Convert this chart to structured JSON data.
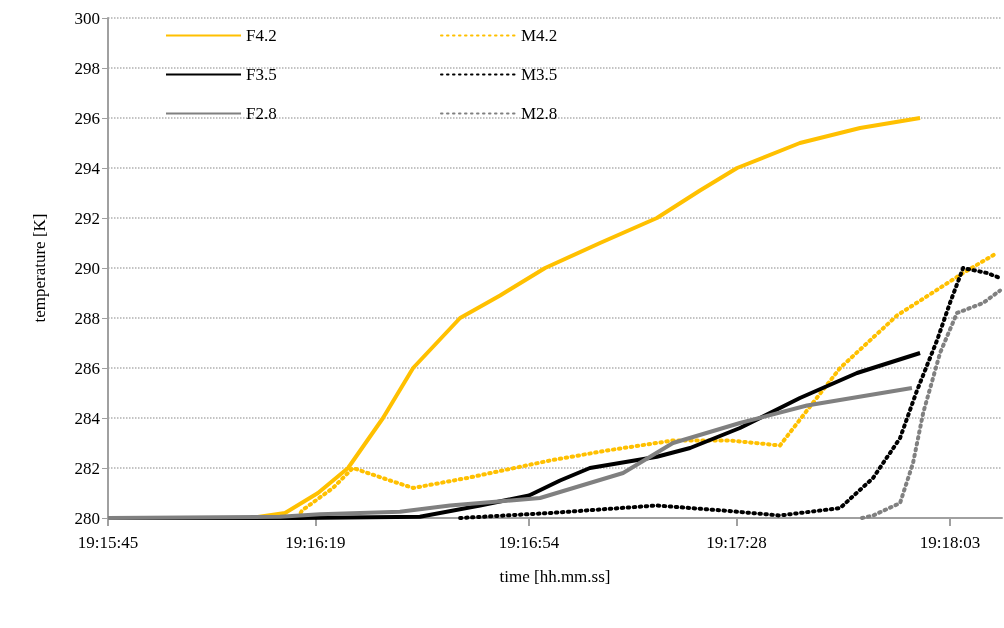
{
  "chart_data": {
    "type": "line",
    "xlabel": "time [hh.mm.ss]",
    "ylabel": "temperature [K]",
    "xlim": [
      19.2625,
      19.3032
    ],
    "xticks": [
      {
        "value": 19.2625,
        "label": "19:15:45"
      },
      {
        "value": 19.27194,
        "label": "19:16:19"
      },
      {
        "value": 19.28167,
        "label": "19:16:54"
      },
      {
        "value": 19.29111,
        "label": "19:17:28"
      },
      {
        "value": 19.30083,
        "label": "19:18:03"
      }
    ],
    "ylim": [
      280,
      300
    ],
    "yticks": [
      280,
      282,
      284,
      286,
      288,
      290,
      292,
      294,
      296,
      298,
      300
    ],
    "grid": "y",
    "legend": "top left",
    "marker": "none",
    "series": [
      {
        "name": "F4.2",
        "color": "#ffc000",
        "line_style": "solid",
        "x": [
          19.2625,
          19.26896,
          19.27056,
          19.27206,
          19.27343,
          19.27502,
          19.27639,
          19.27853,
          19.28035,
          19.2824,
          19.2849,
          19.28749,
          19.28945,
          19.29114,
          19.294,
          19.29674,
          19.29947
        ],
        "values": [
          280,
          280,
          280.2,
          281,
          282,
          284,
          286,
          288,
          288.9,
          290,
          291,
          292,
          293.1,
          294,
          295,
          295.6,
          296
        ]
      },
      {
        "name": "M4.2",
        "color": "#ffc000",
        "line_style": "dotted",
        "x": [
          19.27115,
          19.27133,
          19.27274,
          19.27365,
          19.27534,
          19.27639,
          19.27884,
          19.28262,
          19.28522,
          19.28822,
          19.29082,
          19.29309,
          19.29432,
          19.29583,
          19.29842,
          19.30143,
          19.30297
        ],
        "values": [
          280,
          280.3,
          281.2,
          282,
          281.5,
          281.2,
          281.6,
          282.3,
          282.7,
          283.1,
          283.1,
          282.9,
          284.3,
          286,
          288.1,
          289.8,
          290.6
        ]
      },
      {
        "name": "F3.5",
        "color": "#000000",
        "line_style": "solid",
        "x": [
          19.2625,
          19.27124,
          19.2767,
          19.27944,
          19.28167,
          19.28308,
          19.28444,
          19.28749,
          19.289,
          19.29127,
          19.294,
          19.2966,
          19.29947
        ],
        "values": [
          280,
          280,
          280.05,
          280.5,
          280.9,
          281.5,
          282,
          282.45,
          282.8,
          283.6,
          284.8,
          285.8,
          286.6
        ]
      },
      {
        "name": "M3.5",
        "color": "#000000",
        "line_style": "dotted",
        "x": [
          19.27853,
          19.28262,
          19.28749,
          19.2905,
          19.29309,
          19.29583,
          19.29733,
          19.29856,
          19.29933,
          19.30024,
          19.30083,
          19.30143,
          19.30252,
          19.30311
        ],
        "values": [
          280,
          280.2,
          280.5,
          280.3,
          280.1,
          280.4,
          281.6,
          283.2,
          285.1,
          287.1,
          288.6,
          290,
          289.8,
          289.6
        ]
      },
      {
        "name": "F2.8",
        "color": "#808080",
        "line_style": "solid",
        "x": [
          19.2625,
          19.27033,
          19.27215,
          19.27579,
          19.27807,
          19.28217,
          19.28595,
          19.28822,
          19.29127,
          19.29432,
          19.2991
        ],
        "values": [
          280,
          280.05,
          280.15,
          280.25,
          280.5,
          280.8,
          281.8,
          283,
          283.8,
          284.5,
          285.2
        ]
      },
      {
        "name": "M2.8",
        "color": "#808080",
        "line_style": "dotted",
        "x": [
          19.29683,
          19.29733,
          19.29856,
          19.29915,
          19.29961,
          19.30038,
          19.30115,
          19.30234,
          19.30311
        ],
        "values": [
          280,
          280.1,
          280.6,
          282.2,
          284.2,
          286.6,
          288.2,
          288.6,
          289.1
        ]
      }
    ]
  }
}
